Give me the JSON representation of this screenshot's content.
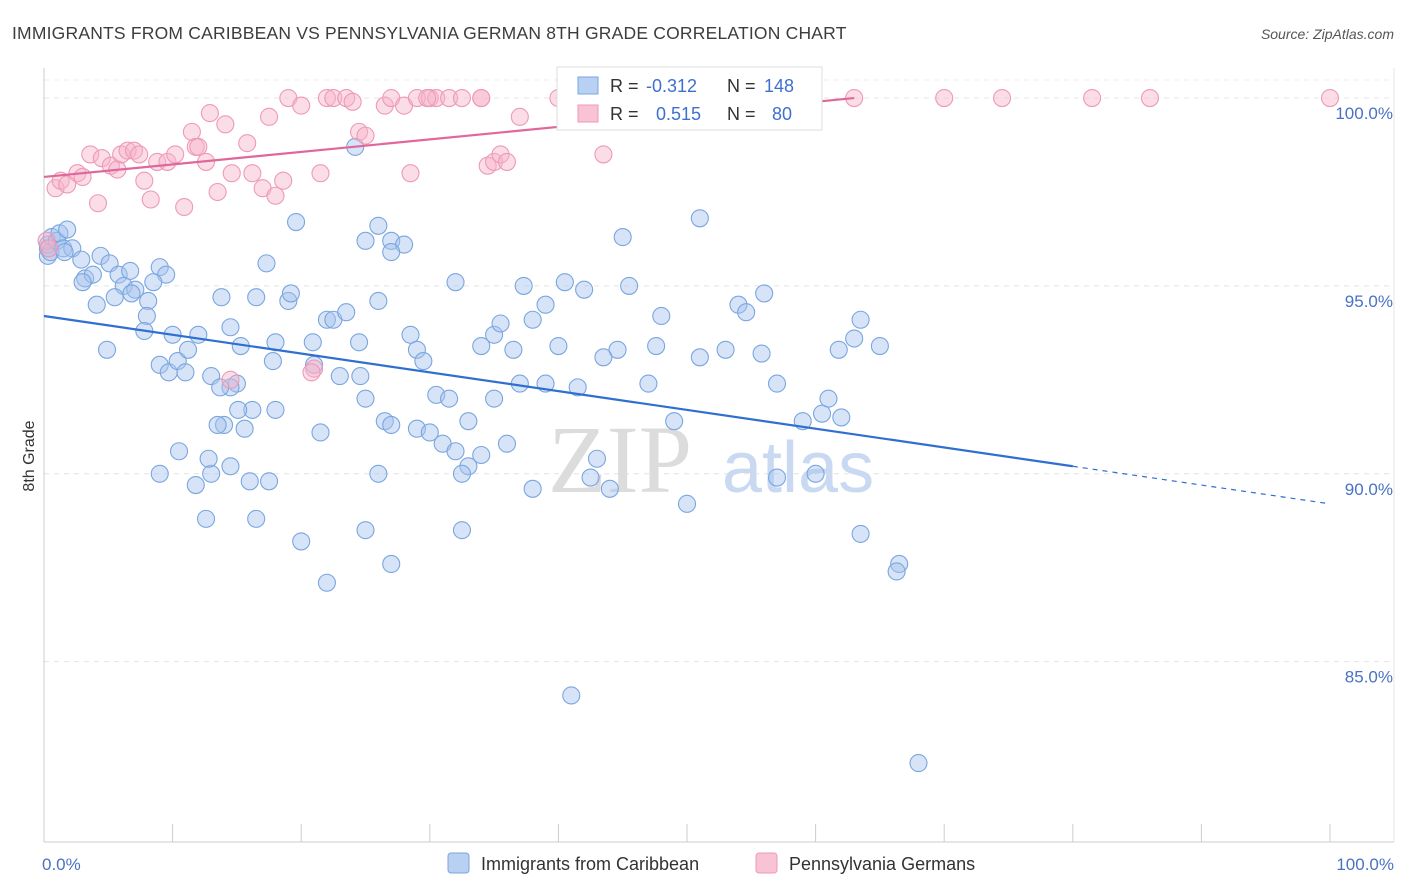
{
  "chart_data": {
    "type": "scatter",
    "title": "IMMIGRANTS FROM CARIBBEAN VS PENNSYLVANIA GERMAN 8TH GRADE CORRELATION CHART",
    "source": "Source: ZipAtlas.com",
    "ylabel": "8th Grade",
    "xlabel": "",
    "xlim": [
      0,
      100
    ],
    "ylim": [
      80.2,
      100.8
    ],
    "x_tick_labels": {
      "min": "0.0%",
      "max": "100.0%"
    },
    "y_ticks": [
      {
        "value": 85,
        "label": "85.0%"
      },
      {
        "value": 90,
        "label": "90.0%"
      },
      {
        "value": 95,
        "label": "95.0%"
      },
      {
        "value": 100,
        "label": "100.0%"
      }
    ],
    "grid": true,
    "legend_position": "bottom",
    "watermark": {
      "zip": "ZIP",
      "atlas": "atlas"
    },
    "stats_box": {
      "r_label": "R =",
      "n_label": "N =",
      "rows": [
        {
          "series": "Immigrants from Caribbean",
          "r": "-0.312",
          "n": "148"
        },
        {
          "series": "Pennsylvania Germans",
          "r": "0.515",
          "n": "80"
        }
      ]
    },
    "series": [
      {
        "name": "Immigrants from Caribbean",
        "color": "#7aa6e0",
        "fill": "rgba(166,196,238,0.45)",
        "line_color": "#2f6fd0",
        "trend": {
          "x0": 0,
          "y0": 94.2,
          "x1": 80,
          "y1": 90.2,
          "dash_to_x": 100,
          "dash_to_y": 89.2
        },
        "points": [
          [
            0.3,
            96.0
          ],
          [
            0.3,
            95.8
          ],
          [
            0.3,
            96.1
          ],
          [
            0.5,
            95.9
          ],
          [
            0.6,
            96.3
          ],
          [
            1.0,
            96.2
          ],
          [
            1.2,
            96.4
          ],
          [
            1.5,
            96.0
          ],
          [
            1.8,
            96.5
          ],
          [
            2.2,
            96.0
          ],
          [
            1.6,
            95.9
          ],
          [
            2.9,
            95.7
          ],
          [
            4.4,
            95.8
          ],
          [
            3.2,
            95.2
          ],
          [
            3.8,
            95.3
          ],
          [
            5.1,
            95.6
          ],
          [
            5.8,
            95.3
          ],
          [
            6.7,
            95.4
          ],
          [
            6.2,
            95.0
          ],
          [
            7.1,
            94.9
          ],
          [
            9.0,
            95.5
          ],
          [
            9.5,
            95.3
          ],
          [
            8.5,
            95.1
          ],
          [
            3.0,
            95.1
          ],
          [
            4.1,
            94.5
          ],
          [
            5.5,
            94.7
          ],
          [
            6.8,
            94.8
          ],
          [
            8.1,
            94.6
          ],
          [
            8.0,
            94.2
          ],
          [
            7.8,
            93.8
          ],
          [
            10.0,
            93.7
          ],
          [
            4.9,
            93.3
          ],
          [
            9.0,
            92.9
          ],
          [
            9.7,
            92.7
          ],
          [
            10.4,
            93.0
          ],
          [
            11.2,
            93.3
          ],
          [
            11.0,
            92.7
          ],
          [
            12.0,
            93.7
          ],
          [
            13.0,
            92.6
          ],
          [
            14.5,
            93.9
          ],
          [
            13.8,
            94.7
          ],
          [
            15.3,
            93.4
          ],
          [
            16.5,
            94.7
          ],
          [
            17.3,
            95.6
          ],
          [
            17.8,
            93.0
          ],
          [
            18.0,
            93.5
          ],
          [
            19.0,
            94.6
          ],
          [
            19.2,
            94.8
          ],
          [
            19.6,
            96.7
          ],
          [
            20.9,
            93.5
          ],
          [
            21.0,
            92.9
          ],
          [
            22.0,
            94.1
          ],
          [
            22.5,
            94.1
          ],
          [
            23.5,
            94.3
          ],
          [
            24.5,
            93.5
          ],
          [
            24.6,
            92.6
          ],
          [
            23.0,
            92.6
          ],
          [
            26.0,
            94.6
          ],
          [
            25.0,
            96.2
          ],
          [
            26.0,
            96.6
          ],
          [
            27.0,
            96.2
          ],
          [
            28.0,
            96.1
          ],
          [
            27.0,
            95.9
          ],
          [
            32.0,
            95.1
          ],
          [
            28.5,
            93.7
          ],
          [
            29.0,
            93.3
          ],
          [
            29.5,
            93.0
          ],
          [
            30.5,
            92.1
          ],
          [
            31.5,
            92.0
          ],
          [
            25.0,
            92.0
          ],
          [
            26.5,
            91.4
          ],
          [
            27.0,
            91.3
          ],
          [
            29.0,
            91.2
          ],
          [
            30.0,
            91.1
          ],
          [
            31.0,
            90.8
          ],
          [
            32.0,
            90.6
          ],
          [
            33.0,
            90.2
          ],
          [
            34.0,
            90.5
          ],
          [
            36.0,
            90.8
          ],
          [
            32.5,
            90.0
          ],
          [
            33.0,
            91.4
          ],
          [
            34.0,
            93.4
          ],
          [
            35.0,
            93.7
          ],
          [
            35.5,
            94.0
          ],
          [
            36.5,
            93.3
          ],
          [
            35.0,
            92.0
          ],
          [
            37.0,
            92.4
          ],
          [
            37.3,
            95.0
          ],
          [
            38.0,
            94.1
          ],
          [
            39.0,
            94.5
          ],
          [
            39.0,
            92.4
          ],
          [
            40.0,
            93.4
          ],
          [
            40.5,
            95.1
          ],
          [
            41.5,
            92.3
          ],
          [
            42.0,
            94.9
          ],
          [
            43.5,
            93.1
          ],
          [
            43.0,
            90.4
          ],
          [
            42.5,
            89.9
          ],
          [
            44.0,
            89.6
          ],
          [
            44.6,
            93.3
          ],
          [
            45.0,
            96.3
          ],
          [
            45.5,
            95.0
          ],
          [
            47.6,
            93.4
          ],
          [
            47.0,
            92.4
          ],
          [
            48.0,
            94.2
          ],
          [
            49.0,
            91.4
          ],
          [
            51.0,
            93.1
          ],
          [
            53.0,
            93.3
          ],
          [
            54.0,
            94.5
          ],
          [
            54.6,
            94.3
          ],
          [
            56.0,
            94.8
          ],
          [
            55.8,
            93.2
          ],
          [
            57.0,
            92.4
          ],
          [
            59.0,
            91.4
          ],
          [
            60.5,
            91.6
          ],
          [
            61.0,
            92.0
          ],
          [
            61.8,
            93.3
          ],
          [
            63.0,
            93.6
          ],
          [
            63.5,
            94.1
          ],
          [
            65.0,
            93.4
          ],
          [
            13.0,
            90.0
          ],
          [
            9.0,
            90.0
          ],
          [
            10.5,
            90.6
          ],
          [
            12.8,
            90.4
          ],
          [
            14.5,
            90.2
          ],
          [
            16.0,
            89.8
          ],
          [
            17.5,
            89.8
          ],
          [
            11.8,
            89.7
          ],
          [
            12.6,
            88.8
          ],
          [
            16.5,
            88.8
          ],
          [
            18.0,
            91.7
          ],
          [
            16.2,
            91.7
          ],
          [
            15.1,
            91.7
          ],
          [
            14.0,
            91.3
          ],
          [
            13.5,
            91.3
          ],
          [
            15.0,
            92.4
          ],
          [
            14.5,
            92.3
          ],
          [
            13.7,
            92.3
          ],
          [
            15.6,
            91.2
          ],
          [
            21.5,
            91.1
          ],
          [
            20.0,
            88.2
          ],
          [
            25.0,
            88.5
          ],
          [
            27.0,
            87.6
          ],
          [
            22.0,
            87.1
          ],
          [
            32.5,
            88.5
          ],
          [
            41.0,
            84.1
          ],
          [
            50.0,
            89.2
          ],
          [
            57.0,
            89.9
          ],
          [
            63.5,
            88.4
          ],
          [
            66.5,
            87.6
          ],
          [
            66.3,
            87.4
          ],
          [
            68.0,
            82.3
          ],
          [
            24.2,
            98.7
          ],
          [
            51.0,
            96.8
          ],
          [
            60.0,
            90.0
          ],
          [
            62.0,
            91.5
          ],
          [
            26.0,
            90.0
          ],
          [
            38.0,
            89.6
          ]
        ]
      },
      {
        "name": "Pennsylvania Germans",
        "color": "#ee9ab5",
        "fill": "rgba(246,180,202,0.45)",
        "line_color": "#e0679a",
        "trend": {
          "x0": 0,
          "y0": 97.9,
          "x1": 63,
          "y1": 100.0
        },
        "points": [
          [
            0.2,
            96.2
          ],
          [
            0.4,
            96.0
          ],
          [
            0.9,
            97.6
          ],
          [
            1.3,
            97.8
          ],
          [
            1.8,
            97.7
          ],
          [
            2.6,
            98.0
          ],
          [
            3.0,
            97.9
          ],
          [
            3.6,
            98.5
          ],
          [
            4.2,
            97.2
          ],
          [
            4.5,
            98.4
          ],
          [
            5.2,
            98.2
          ],
          [
            5.7,
            98.1
          ],
          [
            6.0,
            98.5
          ],
          [
            6.5,
            98.6
          ],
          [
            7.0,
            98.6
          ],
          [
            7.4,
            98.5
          ],
          [
            7.8,
            97.8
          ],
          [
            8.3,
            97.3
          ],
          [
            8.8,
            98.3
          ],
          [
            9.6,
            98.3
          ],
          [
            10.2,
            98.5
          ],
          [
            10.9,
            97.1
          ],
          [
            11.5,
            99.1
          ],
          [
            11.8,
            98.7
          ],
          [
            12.6,
            98.3
          ],
          [
            12.9,
            99.6
          ],
          [
            13.5,
            97.5
          ],
          [
            14.1,
            99.3
          ],
          [
            14.6,
            98.0
          ],
          [
            15.8,
            98.8
          ],
          [
            16.2,
            98.0
          ],
          [
            17.0,
            97.6
          ],
          [
            17.5,
            99.5
          ],
          [
            18.0,
            97.4
          ],
          [
            18.6,
            97.8
          ],
          [
            19.0,
            100.0
          ],
          [
            20.0,
            99.8
          ],
          [
            21.0,
            92.8
          ],
          [
            21.5,
            98.0
          ],
          [
            22.0,
            100.0
          ],
          [
            22.5,
            100.0
          ],
          [
            23.5,
            100.0
          ],
          [
            24.0,
            99.9
          ],
          [
            24.5,
            99.1
          ],
          [
            25.0,
            99.0
          ],
          [
            26.5,
            99.8
          ],
          [
            27.0,
            100.0
          ],
          [
            28.0,
            99.8
          ],
          [
            28.5,
            98.0
          ],
          [
            29.0,
            100.0
          ],
          [
            30.0,
            100.0
          ],
          [
            30.5,
            100.0
          ],
          [
            31.5,
            100.0
          ],
          [
            32.5,
            100.0
          ],
          [
            34.0,
            100.0
          ],
          [
            34.5,
            98.2
          ],
          [
            35.0,
            98.3
          ],
          [
            35.5,
            98.5
          ],
          [
            36.0,
            98.3
          ],
          [
            37.0,
            99.5
          ],
          [
            40.0,
            100.0
          ],
          [
            41.0,
            100.0
          ],
          [
            42.0,
            100.0
          ],
          [
            43.5,
            98.5
          ],
          [
            45.0,
            100.0
          ],
          [
            47.0,
            100.0
          ],
          [
            49.0,
            100.0
          ],
          [
            52.0,
            100.0
          ],
          [
            55.0,
            100.0
          ],
          [
            63.0,
            100.0
          ],
          [
            70.0,
            100.0
          ],
          [
            74.5,
            100.0
          ],
          [
            81.5,
            100.0
          ],
          [
            86.0,
            100.0
          ],
          [
            100.0,
            100.0
          ],
          [
            14.5,
            92.5
          ],
          [
            20.8,
            92.7
          ],
          [
            12.0,
            98.7
          ],
          [
            34.0,
            100.0
          ],
          [
            29.8,
            100.0
          ]
        ]
      }
    ]
  }
}
